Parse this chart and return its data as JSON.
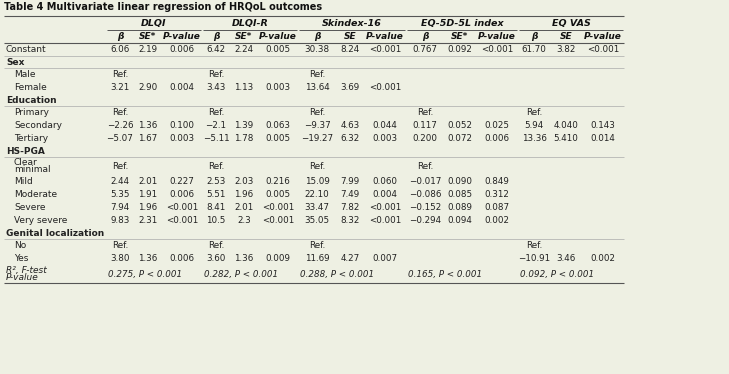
{
  "title": "Table 4 Multivariate linear regression of HRQoL outcomes",
  "bg_color": "#eef0e3",
  "col_groups": [
    {
      "label": "DLQI",
      "cols": [
        "β",
        "SE*",
        "P-value"
      ]
    },
    {
      "label": "DLQI-R",
      "cols": [
        "β",
        "SE*",
        "P-value"
      ]
    },
    {
      "label": "Skindex-16",
      "cols": [
        "β",
        "SE",
        "P-value"
      ]
    },
    {
      "label": "EQ-5D-5L index",
      "cols": [
        "β",
        "SE*",
        "P-value"
      ]
    },
    {
      "label": "EQ VAS",
      "cols": [
        "β",
        "SE",
        "P-value"
      ]
    }
  ],
  "rows": [
    {
      "label": "Constant",
      "bold": false,
      "indent": false,
      "data": [
        "6.06",
        "2.19",
        "0.006",
        "6.42",
        "2.24",
        "0.005",
        "30.38",
        "8.24",
        "<0.001",
        "0.767",
        "0.092",
        "<0.001",
        "61.70",
        "3.82",
        "<0.001"
      ]
    },
    {
      "label": "Sex",
      "bold": true,
      "indent": false,
      "data": [
        "",
        "",
        "",
        "",
        "",
        "",
        "",
        "",
        "",
        "",
        "",
        "",
        "",
        "",
        ""
      ]
    },
    {
      "label": "Male",
      "bold": false,
      "indent": true,
      "data": [
        "Ref.",
        "",
        "",
        "Ref.",
        "",
        "",
        "Ref.",
        "",
        "",
        "",
        "",
        "",
        "",
        "",
        ""
      ]
    },
    {
      "label": "Female",
      "bold": false,
      "indent": true,
      "data": [
        "3.21",
        "2.90",
        "0.004",
        "3.43",
        "1.13",
        "0.003",
        "13.64",
        "3.69",
        "<0.001",
        "",
        "",
        "",
        "",
        "",
        ""
      ]
    },
    {
      "label": "Education",
      "bold": true,
      "indent": false,
      "data": [
        "",
        "",
        "",
        "",
        "",
        "",
        "",
        "",
        "",
        "",
        "",
        "",
        "",
        "",
        ""
      ]
    },
    {
      "label": "Primary",
      "bold": false,
      "indent": true,
      "data": [
        "Ref.",
        "",
        "",
        "Ref.",
        "",
        "",
        "Ref.",
        "",
        "",
        "Ref.",
        "",
        "",
        "Ref.",
        "",
        ""
      ]
    },
    {
      "label": "Secondary",
      "bold": false,
      "indent": true,
      "data": [
        "−2.26",
        "1.36",
        "0.100",
        "−2.1",
        "1.39",
        "0.063",
        "−9.37",
        "4.63",
        "0.044",
        "0.117",
        "0.052",
        "0.025",
        "5.94",
        "4.040",
        "0.143"
      ]
    },
    {
      "label": "Tertiary",
      "bold": false,
      "indent": true,
      "data": [
        "−5.07",
        "1.67",
        "0.003",
        "−5.11",
        "1.78",
        "0.005",
        "−19.27",
        "6.32",
        "0.003",
        "0.200",
        "0.072",
        "0.006",
        "13.36",
        "5.410",
        "0.014"
      ]
    },
    {
      "label": "HS-PGA",
      "bold": true,
      "indent": false,
      "data": [
        "",
        "",
        "",
        "",
        "",
        "",
        "",
        "",
        "",
        "",
        "",
        "",
        "",
        "",
        ""
      ]
    },
    {
      "label": "Clear",
      "bold": false,
      "indent": true,
      "sub": "minimal",
      "data": [
        "Ref.",
        "",
        "",
        "Ref.",
        "",
        "",
        "Ref.",
        "",
        "",
        "Ref.",
        "",
        "",
        "",
        "",
        ""
      ]
    },
    {
      "label": "Mild",
      "bold": false,
      "indent": true,
      "data": [
        "2.44",
        "2.01",
        "0.227",
        "2.53",
        "2.03",
        "0.216",
        "15.09",
        "7.99",
        "0.060",
        "−0.017",
        "0.090",
        "0.849",
        "",
        "",
        ""
      ]
    },
    {
      "label": "Moderate",
      "bold": false,
      "indent": true,
      "data": [
        "5.35",
        "1.91",
        "0.006",
        "5.51",
        "1.96",
        "0.005",
        "22.10",
        "7.49",
        "0.004",
        "−0.086",
        "0.085",
        "0.312",
        "",
        "",
        ""
      ]
    },
    {
      "label": "Severe",
      "bold": false,
      "indent": true,
      "data": [
        "7.94",
        "1.96",
        "<0.001",
        "8.41",
        "2.01",
        "<0.001",
        "33.47",
        "7.82",
        "<0.001",
        "−0.152",
        "0.089",
        "0.087",
        "",
        "",
        ""
      ]
    },
    {
      "label": "Very severe",
      "bold": false,
      "indent": true,
      "data": [
        "9.83",
        "2.31",
        "<0.001",
        "10.5",
        "2.3",
        "<0.001",
        "35.05",
        "8.32",
        "<0.001",
        "−0.294",
        "0.094",
        "0.002",
        "",
        "",
        ""
      ]
    },
    {
      "label": "Genital localization",
      "bold": true,
      "indent": false,
      "data": [
        "",
        "",
        "",
        "",
        "",
        "",
        "",
        "",
        "",
        "",
        "",
        "",
        "",
        "",
        ""
      ]
    },
    {
      "label": "No",
      "bold": false,
      "indent": true,
      "data": [
        "Ref.",
        "",
        "",
        "Ref.",
        "",
        "",
        "Ref.",
        "",
        "",
        "",
        "",
        "",
        "Ref.",
        "",
        ""
      ]
    },
    {
      "label": "Yes",
      "bold": false,
      "indent": true,
      "data": [
        "3.80",
        "1.36",
        "0.006",
        "3.60",
        "1.36",
        "0.009",
        "11.69",
        "4.27",
        "0.007",
        "",
        "",
        "",
        "−10.91",
        "3.46",
        "0.002"
      ]
    },
    {
      "label": "R², F-test",
      "bold": false,
      "italic": true,
      "indent": false,
      "sub": "P-value",
      "data": [
        "0.275, P < 0.001",
        "",
        "",
        "0.282, P < 0.001",
        "",
        "",
        "0.288, P < 0.001",
        "",
        "",
        "0.165, P < 0.001",
        "",
        "",
        "0.092, P < 0.001",
        "",
        ""
      ]
    }
  ],
  "line_color": "#999999",
  "text_color": "#222222"
}
